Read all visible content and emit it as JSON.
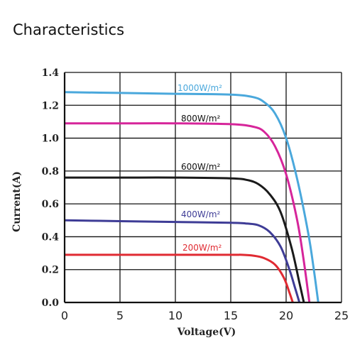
{
  "heading": "Characteristics",
  "chart_data": {
    "type": "line",
    "title": "",
    "xlabel": "Voltage(V)",
    "ylabel": "Current(A)",
    "xlim": [
      0,
      25
    ],
    "ylim": [
      0,
      1.4
    ],
    "xticks": [
      "0",
      "5",
      "10",
      "15",
      "20",
      "25"
    ],
    "yticks": [
      "0.0",
      "0.2",
      "0.4",
      "0.6",
      "0.8",
      "1.0",
      "1.2",
      "1.4"
    ],
    "grid": true,
    "series": [
      {
        "name": "1000W/m²",
        "color": "#4aa8dc",
        "x": [
          0,
          5,
          10,
          15,
          17,
          18,
          19,
          20,
          21,
          22,
          22.5,
          22.9
        ],
        "y": [
          1.28,
          1.275,
          1.27,
          1.265,
          1.25,
          1.22,
          1.15,
          1.0,
          0.75,
          0.42,
          0.2,
          0.0
        ]
      },
      {
        "name": "800W/m²",
        "color": "#d6259a",
        "x": [
          0,
          5,
          10,
          15,
          17,
          18,
          19,
          20,
          21,
          21.6,
          22.1
        ],
        "y": [
          1.09,
          1.09,
          1.09,
          1.085,
          1.07,
          1.04,
          0.95,
          0.78,
          0.5,
          0.25,
          0.0
        ]
      },
      {
        "name": "600W/m²",
        "color": "#1a1a1a",
        "x": [
          0,
          5,
          10,
          15,
          16.5,
          17.5,
          18.5,
          19.5,
          20.5,
          21.2,
          21.6
        ],
        "y": [
          0.76,
          0.76,
          0.76,
          0.755,
          0.745,
          0.72,
          0.66,
          0.55,
          0.33,
          0.12,
          0.0
        ]
      },
      {
        "name": "400W/m²",
        "color": "#3e3c96",
        "x": [
          0,
          5,
          10,
          15,
          16.5,
          17.5,
          18.5,
          19.5,
          20.3,
          20.8,
          21.2
        ],
        "y": [
          0.5,
          0.495,
          0.49,
          0.485,
          0.48,
          0.47,
          0.43,
          0.34,
          0.2,
          0.09,
          0.0
        ]
      },
      {
        "name": "200W/m²",
        "color": "#e02a32",
        "x": [
          0,
          5,
          10,
          15,
          16,
          17,
          18,
          19,
          19.8,
          20.3,
          20.6
        ],
        "y": [
          0.29,
          0.29,
          0.29,
          0.29,
          0.29,
          0.285,
          0.27,
          0.23,
          0.15,
          0.06,
          0.0
        ]
      }
    ]
  }
}
